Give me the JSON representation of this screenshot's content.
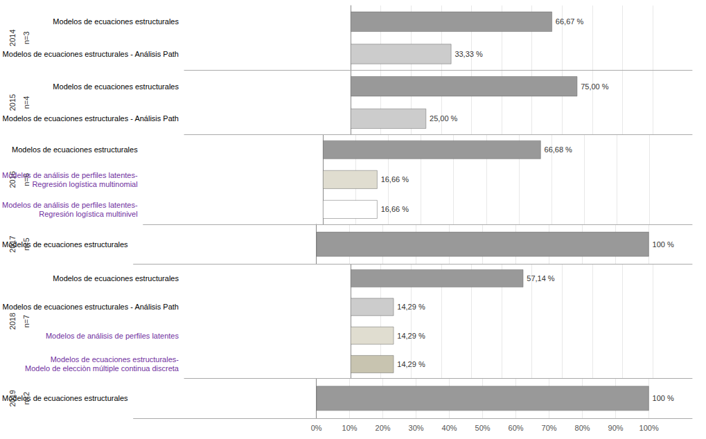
{
  "chart_data": {
    "type": "bar",
    "orientation": "horizontal",
    "data_labels": true,
    "grid": true,
    "xlim": [
      -55,
      113
    ],
    "xticks": [
      {
        "value": 0,
        "label": "0%"
      },
      {
        "value": 10,
        "label": "10%"
      },
      {
        "value": 20,
        "label": "20%"
      },
      {
        "value": 30,
        "label": "30%"
      },
      {
        "value": 40,
        "label": "40%"
      },
      {
        "value": 50,
        "label": "50%"
      },
      {
        "value": 60,
        "label": "60%"
      },
      {
        "value": 70,
        "label": "70%"
      },
      {
        "value": 80,
        "label": "80%"
      },
      {
        "value": 90,
        "label": "90%"
      },
      {
        "value": 100,
        "label": "100%"
      }
    ],
    "groups": [
      {
        "labels": [
          "2014",
          "n=3"
        ],
        "categories": [
          "Modelos de ecuaciones estructurales",
          "Modelos de ecuaciones estructurales - Análisis Path"
        ],
        "values": [
          66.67,
          33.33
        ],
        "value_labels": [
          "66,67 %",
          "33,33 %"
        ],
        "colors": [
          "#999999",
          "#cccccc"
        ],
        "label_colors": [
          "#000000",
          "#000000"
        ]
      },
      {
        "labels": [
          "2015",
          "n=4"
        ],
        "categories": [
          "Modelos de ecuaciones estructurales",
          "Modelos de ecuaciones estructurales - Análisis Path"
        ],
        "values": [
          75.0,
          25.0
        ],
        "value_labels": [
          "75,00 %",
          "25,00 %"
        ],
        "colors": [
          "#999999",
          "#cccccc"
        ],
        "label_colors": [
          "#000000",
          "#000000"
        ]
      },
      {
        "labels": [
          "2016",
          "n=6"
        ],
        "categories": [
          "Modelos de ecuaciones estructurales",
          "Modelos de análisis de perfiles latentes-\nRegresión logística multinomial",
          "Modelos de análisis de perfiles latentes-\nRegresión logística multinivel"
        ],
        "values": [
          66.68,
          16.66,
          16.66
        ],
        "value_labels": [
          "66,68 %",
          "16,66 %",
          "16,66 %"
        ],
        "colors": [
          "#999999",
          "#e0ddd0",
          "#ffffff"
        ],
        "label_colors": [
          "#000000",
          "#7030a0",
          "#7030a0"
        ]
      },
      {
        "labels": [
          "2017",
          "n=5"
        ],
        "categories": [
          "Modelos de ecuaciones estructurales"
        ],
        "values": [
          100.0
        ],
        "value_labels": [
          "100 %"
        ],
        "colors": [
          "#999999"
        ],
        "label_colors": [
          "#000000"
        ]
      },
      {
        "labels": [
          "2018",
          "n=7"
        ],
        "categories": [
          "Modelos de ecuaciones estructurales",
          "Modelos de ecuaciones estructurales - Análisis Path",
          "Modelos de análisis de perfiles latentes",
          "Modelos de ecuaciones estructurales-\nModelo de elecciòn múltiple continua discreta"
        ],
        "values": [
          57.14,
          14.29,
          14.29,
          14.29
        ],
        "value_labels": [
          "57,14 %",
          "14,29 %",
          "14,29 %",
          "14,29 %"
        ],
        "colors": [
          "#999999",
          "#cccccc",
          "#e0ddd0",
          "#c8c4b0"
        ],
        "label_colors": [
          "#000000",
          "#000000",
          "#7030a0",
          "#7030a0"
        ]
      },
      {
        "labels": [
          "2019",
          "n=2"
        ],
        "categories": [
          "Modelos de ecuaciones estructurales"
        ],
        "values": [
          100.0
        ],
        "value_labels": [
          "100 %"
        ],
        "colors": [
          "#999999"
        ],
        "label_colors": [
          "#000000"
        ]
      }
    ]
  }
}
